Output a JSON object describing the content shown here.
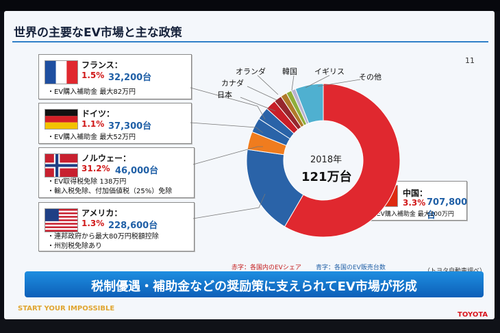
{
  "slide": {
    "title": "世界の主要なEV市場と主な政策",
    "page_number": "11",
    "center_year": "2018年",
    "center_total": "121万台",
    "legend_red": "赤字：各国内のEVシェア",
    "legend_blue": "青字：各国のEV販売台数",
    "source": "（トヨタ自動車調べ）",
    "banner": "税制優遇・補助金などの奨励策に支えられてEV市場が形成",
    "footer_left": "START YOUR IMPOSSIBLE",
    "footer_right": "TOYOTA"
  },
  "countries": {
    "france": {
      "name": "フランス：",
      "share": "1.5%",
      "sales": "32,200台",
      "notes": [
        "・EV購入補助金 最大82万円"
      ]
    },
    "germany": {
      "name": "ドイツ：",
      "share": "1.1%",
      "sales": "37,300台",
      "notes": [
        "・EV購入補助金 最大52万円"
      ]
    },
    "norway": {
      "name": "ノルウェー：",
      "share": "31.2%",
      "sales": "46,000台",
      "notes": [
        "・EV取得税免除 138万円",
        "・輸入税免除、付加価値税（25%）免除"
      ]
    },
    "usa": {
      "name": "アメリカ：",
      "share": "1.3%",
      "sales": "228,600台",
      "notes": [
        "・連邦政府から最大80万円税額控除",
        "・州別税免除あり"
      ]
    },
    "china": {
      "name": "中国：",
      "share": "3.3%",
      "sales": "707,800台",
      "notes": [
        "・EV購入補助金 最大100万円"
      ]
    }
  },
  "labels": {
    "netherlands": "オランダ",
    "korea": "韓国",
    "uk": "イギリス",
    "others": "その他",
    "canada": "カナダ",
    "japan": "日本"
  },
  "chart_data": {
    "type": "pie",
    "style": "donut",
    "total": "121万台",
    "year": "2018年",
    "slices": [
      {
        "name": "中国",
        "value": 707800,
        "color": "#e0282f"
      },
      {
        "name": "アメリカ",
        "value": 228600,
        "color": "#2a63a8"
      },
      {
        "name": "ノルウェー",
        "value": 46000,
        "color": "#f07c1e"
      },
      {
        "name": "ドイツ",
        "value": 37300,
        "color": "#2a63a8"
      },
      {
        "name": "フランス",
        "value": 32200,
        "color": "#2a63a8"
      },
      {
        "name": "日本",
        "value": 27000,
        "color": "#c81e28"
      },
      {
        "name": "カナダ",
        "value": 20000,
        "color": "#96272d"
      },
      {
        "name": "オランダ",
        "value": 16000,
        "color": "#b07a2a"
      },
      {
        "name": "韓国",
        "value": 14000,
        "color": "#8fae3a"
      },
      {
        "name": "イギリス",
        "value": 11000,
        "color": "#b9b3cf"
      },
      {
        "name": "その他",
        "value": 72000,
        "color": "#4fb0d0"
      }
    ]
  },
  "colors": {
    "accent_blue": "#2f7fc8",
    "share_red": "#d01818",
    "sales_blue": "#1f5fa6",
    "toyota_red": "#d9151c"
  }
}
